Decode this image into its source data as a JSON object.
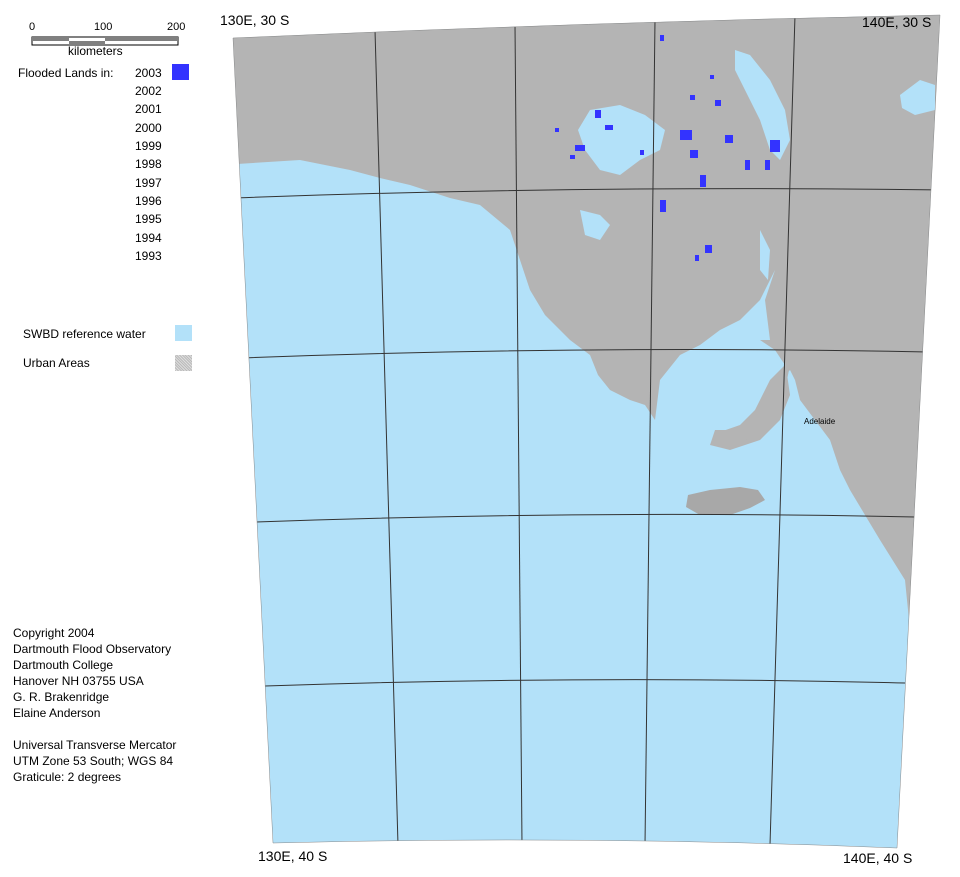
{
  "corners": {
    "top_left": "130E, 30 S",
    "top_right": "140E, 30 S",
    "bottom_left": "130E, 40 S",
    "bottom_right": "140E, 40 S"
  },
  "scale_bar": {
    "ticks": [
      "0",
      "100",
      "200"
    ],
    "unit": "kilometers"
  },
  "legend": {
    "flooded_label": "Flooded Lands in:",
    "years": [
      "2003",
      "2002",
      "2001",
      "2000",
      "1999",
      "1998",
      "1997",
      "1996",
      "1995",
      "1994",
      "1993"
    ],
    "flooded_color_2003": "#3333ff",
    "reference_water_label": "SWBD reference water",
    "reference_water_color": "#b3e1f9",
    "urban_label": "Urban Areas",
    "urban_color": "#c8c8c8"
  },
  "places": {
    "adelaide": "Adelaide"
  },
  "credits": [
    "Copyright 2004",
    "Dartmouth Flood Observatory",
    "Dartmouth College",
    "Hanover NH 03755 USA",
    "G. R. Brakenridge",
    "Elaine Anderson"
  ],
  "projection": [
    "Universal Transverse Mercator",
    "UTM Zone 53 South; WGS 84",
    "Graticule:  2 degrees"
  ],
  "colors": {
    "water": "#b3e1f9",
    "land": "#b4b4b4",
    "graticule": "#333333",
    "flood": "#3333ff"
  }
}
